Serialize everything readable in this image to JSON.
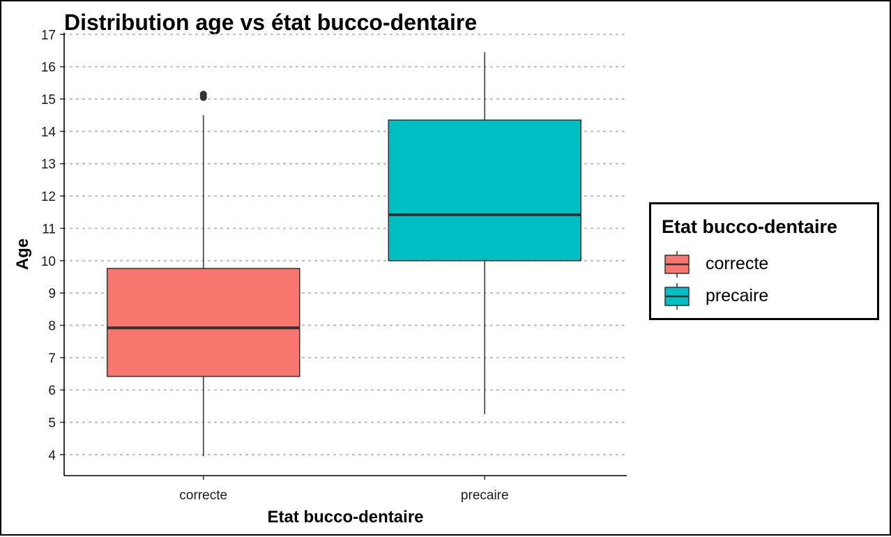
{
  "chart_data": {
    "type": "boxplot",
    "title": "Distribution age vs état bucco-dentaire",
    "xlabel": "Etat bucco-dentaire",
    "ylabel": "Age",
    "ylim": [
      3.35,
      17.05
    ],
    "yticks": [
      4,
      5,
      6,
      7,
      8,
      9,
      10,
      11,
      12,
      13,
      14,
      15,
      16,
      17
    ],
    "grid": "horizontal-dotted",
    "categories": [
      "correcte",
      "precaire"
    ],
    "boxes": [
      {
        "category": "correcte",
        "min": 3.95,
        "q1": 6.42,
        "median": 7.92,
        "q3": 9.76,
        "max": 14.5,
        "outliers": [
          15.05,
          15.1,
          15.15
        ],
        "color": "#F8766D"
      },
      {
        "category": "precaire",
        "min": 5.25,
        "q1": 10.0,
        "median": 11.42,
        "q3": 14.35,
        "max": 16.45,
        "outliers": [],
        "color": "#00BFC4"
      }
    ],
    "legend": {
      "title": "Etat bucco-dentaire",
      "position": "right",
      "items": [
        {
          "label": "correcte",
          "color": "#F8766D"
        },
        {
          "label": "precaire",
          "color": "#00BFC4"
        }
      ]
    }
  }
}
